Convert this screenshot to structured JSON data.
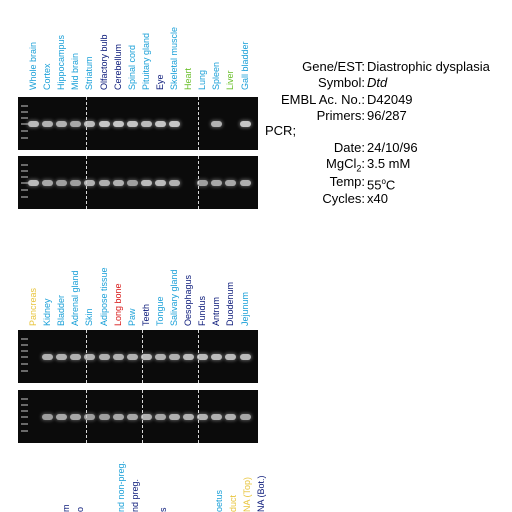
{
  "colors": {
    "cyan": "#1aa0d8",
    "navy": "#0b1a7a",
    "green": "#6abf2a",
    "yellow": "#e8c43c",
    "red": "#d81818"
  },
  "top_lanes": [
    {
      "label": "Whole brain",
      "color": "cyan"
    },
    {
      "label": "Cortex",
      "color": "cyan"
    },
    {
      "label": "Hippocampus",
      "color": "cyan"
    },
    {
      "label": "Mid brain",
      "color": "cyan"
    },
    {
      "label": "Striatum",
      "color": "cyan"
    },
    {
      "label": "Olfactory bulb",
      "color": "navy"
    },
    {
      "label": "Cerebellum",
      "color": "navy"
    },
    {
      "label": "Spinal cord",
      "color": "cyan"
    },
    {
      "label": "Pituitary gland",
      "color": "cyan"
    },
    {
      "label": "Eye",
      "color": "navy"
    },
    {
      "label": "Skeletal muscle",
      "color": "cyan"
    },
    {
      "label": "Heart",
      "color": "green"
    },
    {
      "label": "Lung",
      "color": "cyan"
    },
    {
      "label": "Spleen",
      "color": "cyan"
    },
    {
      "label": "Liver",
      "color": "green"
    },
    {
      "label": "Gall bladder",
      "color": "cyan"
    }
  ],
  "mid_lanes": [
    {
      "label": "Pancreas",
      "color": "yellow"
    },
    {
      "label": "Kidney",
      "color": "cyan"
    },
    {
      "label": "Bladder",
      "color": "cyan"
    },
    {
      "label": "Adrenal gland",
      "color": "cyan"
    },
    {
      "label": "Skin",
      "color": "cyan"
    },
    {
      "label": "Adipose tissue",
      "color": "cyan"
    },
    {
      "label": "Long bone",
      "color": "red"
    },
    {
      "label": "Paw",
      "color": "cyan"
    },
    {
      "label": "Teeth",
      "color": "navy"
    },
    {
      "label": "Tongue",
      "color": "cyan"
    },
    {
      "label": "Salivary gland",
      "color": "cyan"
    },
    {
      "label": "Oesophagus",
      "color": "navy"
    },
    {
      "label": "Fundus",
      "color": "navy"
    },
    {
      "label": "Antrum",
      "color": "navy"
    },
    {
      "label": "Duodenum",
      "color": "navy"
    },
    {
      "label": "Jejunum",
      "color": "cyan"
    }
  ],
  "bottom_lanes": [
    {
      "label": "m",
      "color": "navy"
    },
    {
      "label": "o",
      "color": "navy"
    },
    {
      "label": "nd non-preg.",
      "color": "cyan"
    },
    {
      "label": "nd preg.",
      "color": "navy"
    },
    {
      "label": "s",
      "color": "navy"
    },
    {
      "label": "oetus",
      "color": "cyan"
    },
    {
      "label": "duct",
      "color": "yellow"
    },
    {
      "label": "NA (Top)",
      "color": "yellow"
    },
    {
      "label": "NA (Bot.)",
      "color": "navy"
    }
  ],
  "info": {
    "gene_key": "Gene/EST:",
    "gene_val": "Diastrophic dysplasia",
    "symbol_key": "Symbol:",
    "symbol_val": "Dtd",
    "embl_key": "EMBL Ac. No.:",
    "embl_val": "D42049",
    "primers_key": "Primers:",
    "primers_val": "96/287",
    "pcr_label": "PCR;",
    "date_key": "Date:",
    "date_val": "24/10/96",
    "mgcl_key": "MgCl",
    "mgcl_sub": "2",
    "mgcl_colon": ":",
    "mgcl_val": "3.5 mM",
    "temp_key": "Temp:",
    "temp_val": "55",
    "temp_sup": "o",
    "temp_unit": "C",
    "cycles_key": "Cycles:",
    "cycles_val": "x40"
  },
  "gels": {
    "top_row1": [
      0.9,
      0.85,
      0.85,
      0.8,
      0.9,
      0.95,
      0.95,
      0.95,
      0.9,
      0.95,
      0.95,
      0,
      0,
      0.85,
      0,
      0.95
    ],
    "top_row2": [
      0.9,
      0.8,
      0.75,
      0.75,
      0.85,
      0.85,
      0.85,
      0.75,
      0.9,
      0.9,
      0.85,
      0,
      0.75,
      0.8,
      0.8,
      0.85
    ],
    "mid_row1": [
      0,
      0.85,
      0.85,
      0.85,
      0.85,
      0.85,
      0.85,
      0.85,
      0.9,
      0.85,
      0.85,
      0.9,
      0.9,
      0.9,
      0.9,
      0.9
    ],
    "mid_row2": [
      0,
      0.75,
      0.8,
      0.8,
      0.75,
      0.75,
      0.8,
      0.8,
      0.85,
      0.8,
      0.85,
      0.85,
      0.85,
      0.85,
      0.85,
      0.8
    ]
  }
}
